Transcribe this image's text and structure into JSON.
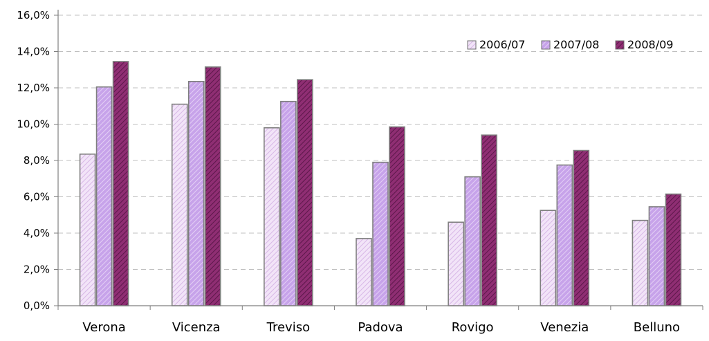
{
  "chart_data": {
    "type": "bar",
    "title": "",
    "xlabel": "",
    "ylabel": "",
    "categories": [
      "Verona",
      "Vicenza",
      "Treviso",
      "Padova",
      "Rovigo",
      "Venezia",
      "Belluno"
    ],
    "series": [
      {
        "name": "2006/07",
        "values": [
          8.35,
          11.1,
          9.8,
          3.7,
          4.6,
          5.25,
          4.7
        ],
        "color": "#f2e4f8",
        "stripe": "#d7b7e6",
        "legend_swatch": "#e9dcf1"
      },
      {
        "name": "2007/08",
        "values": [
          12.05,
          12.35,
          11.25,
          7.9,
          7.1,
          7.75,
          5.45
        ],
        "color": "#c7a3ea",
        "stripe": "#e4d0f5",
        "legend_swatch": "#c7a3ea"
      },
      {
        "name": "2008/09",
        "values": [
          13.45,
          13.15,
          12.45,
          9.85,
          9.4,
          8.55,
          6.15
        ],
        "color": "#8f2e73",
        "stripe": "#5c174a",
        "legend_swatch": "#8f2e73"
      }
    ],
    "ylim": [
      0,
      16
    ],
    "y_ticks": [
      "0,0%",
      "2,0%",
      "4,0%",
      "6,0%",
      "8,0%",
      "10,0%",
      "12,0%",
      "14,0%",
      "16,0%"
    ],
    "grid": true,
    "grid_style": "dashed",
    "legend_position": "top-right",
    "border_color": "#7f7f7f",
    "axis_color": "#7f7f7f",
    "grid_color": "#bfbfbf"
  }
}
